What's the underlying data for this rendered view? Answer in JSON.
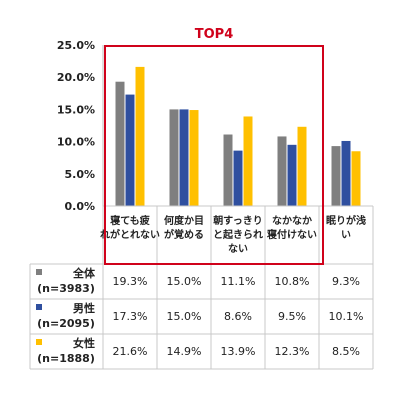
{
  "chart_data": {
    "type": "bar",
    "categories": [
      [
        "寝ても疲",
        "れがとれない"
      ],
      [
        "何度か目",
        "が覚める"
      ],
      [
        "朝すっきり",
        "と起きられ",
        "ない"
      ],
      [
        "なかなか",
        "寝付けない"
      ],
      [
        "眠りが浅",
        "い"
      ]
    ],
    "series": [
      {
        "name": [
          "全体",
          "(n=3983)"
        ],
        "color": "#7f7f7f",
        "values": [
          19.3,
          15.0,
          11.1,
          10.8,
          9.3
        ],
        "labels": [
          "19.3%",
          "15.0%",
          "11.1%",
          "10.8%",
          "9.3%"
        ]
      },
      {
        "name": [
          "男性",
          "(n=2095)"
        ],
        "color": "#2f4f9f",
        "values": [
          17.3,
          15.0,
          8.6,
          9.5,
          10.1
        ],
        "labels": [
          "17.3%",
          "15.0%",
          "8.6%",
          "9.5%",
          "10.1%"
        ]
      },
      {
        "name": [
          "女性",
          "(n=1888)"
        ],
        "color": "#ffc000",
        "values": [
          21.6,
          14.9,
          13.9,
          12.3,
          8.5
        ],
        "labels": [
          "21.6%",
          "14.9%",
          "13.9%",
          "12.3%",
          "8.5%"
        ]
      }
    ],
    "ylim": [
      0,
      25
    ],
    "yticks": [
      "25.0%",
      "20.0%",
      "15.0%",
      "10.0%",
      "5.0%",
      "0.0%"
    ],
    "highlight": {
      "label": "TOP4",
      "color": "#d0021b",
      "covers_categories": 4
    }
  }
}
